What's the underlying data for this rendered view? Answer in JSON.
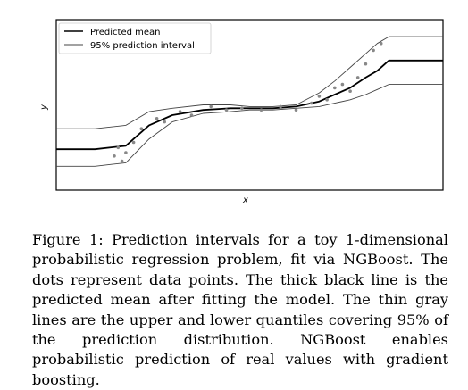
{
  "figure": {
    "caption_label": "Figure 1:",
    "caption_text": "Prediction intervals for a toy 1-dimensional probabilistic regression problem, fit via NGBoost. The dots represent data points. The thick black line is the predicted mean after fitting the model. The thin gray lines are the upper and lower quantiles covering 95% of the prediction distribution. NGBoost enables probabilistic prediction of real values with gradient boosting."
  },
  "chart_data": {
    "type": "line",
    "xlabel": "x",
    "ylabel": "y",
    "xlim": [
      0,
      1
    ],
    "ylim": [
      0,
      1
    ],
    "grid": false,
    "legend_position": "top-left",
    "colors": {
      "mean": "#000000",
      "interval": "#444444",
      "points": "#888888"
    },
    "series": [
      {
        "name": "Predicted mean",
        "x": [
          0.0,
          0.1,
          0.18,
          0.24,
          0.3,
          0.38,
          0.45,
          0.5,
          0.56,
          0.62,
          0.68,
          0.72,
          0.76,
          0.8,
          0.83,
          0.86,
          1.0
        ],
        "y": [
          0.24,
          0.24,
          0.26,
          0.38,
          0.44,
          0.47,
          0.48,
          0.48,
          0.48,
          0.49,
          0.52,
          0.56,
          0.6,
          0.66,
          0.7,
          0.76,
          0.76
        ]
      },
      {
        "name": "95% prediction interval",
        "x": [
          0.0,
          0.1,
          0.18,
          0.24,
          0.3,
          0.38,
          0.45,
          0.5,
          0.56,
          0.62,
          0.68,
          0.72,
          0.76,
          0.8,
          0.83,
          0.86,
          1.0
        ],
        "y": [
          0.36,
          0.36,
          0.38,
          0.46,
          0.48,
          0.5,
          0.5,
          0.49,
          0.49,
          0.5,
          0.57,
          0.64,
          0.72,
          0.8,
          0.86,
          0.9,
          0.9
        ]
      },
      {
        "name": "",
        "x": [
          0.0,
          0.1,
          0.18,
          0.24,
          0.3,
          0.38,
          0.45,
          0.5,
          0.56,
          0.62,
          0.68,
          0.72,
          0.76,
          0.8,
          0.83,
          0.86,
          1.0
        ],
        "y": [
          0.14,
          0.14,
          0.16,
          0.3,
          0.4,
          0.45,
          0.46,
          0.47,
          0.47,
          0.48,
          0.49,
          0.51,
          0.53,
          0.56,
          0.59,
          0.62,
          0.62
        ]
      }
    ],
    "points": {
      "x": [
        0.15,
        0.16,
        0.17,
        0.18,
        0.2,
        0.22,
        0.26,
        0.28,
        0.32,
        0.35,
        0.4,
        0.44,
        0.48,
        0.53,
        0.58,
        0.62,
        0.66,
        0.68,
        0.7,
        0.72,
        0.74,
        0.76,
        0.78,
        0.8,
        0.82,
        0.84
      ],
      "y": [
        0.2,
        0.25,
        0.17,
        0.22,
        0.28,
        0.36,
        0.42,
        0.4,
        0.46,
        0.44,
        0.49,
        0.47,
        0.48,
        0.47,
        0.49,
        0.47,
        0.51,
        0.55,
        0.53,
        0.6,
        0.62,
        0.58,
        0.66,
        0.74,
        0.82,
        0.86
      ]
    }
  }
}
